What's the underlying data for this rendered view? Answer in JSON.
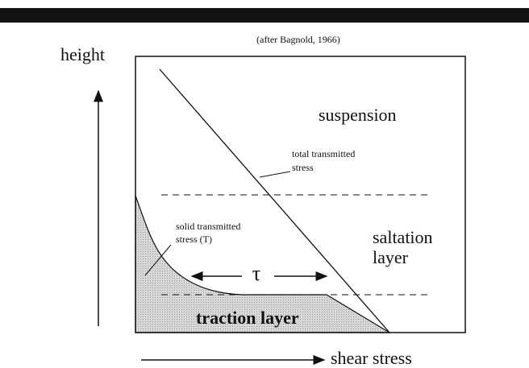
{
  "caption": "(after Bagnold, 1966)",
  "axes": {
    "y_label": "height",
    "x_label": "shear stress"
  },
  "regions": {
    "suspension": "suspension",
    "saltation": [
      "saltation",
      "layer"
    ],
    "traction": "traction layer"
  },
  "annotations": {
    "total": [
      "total transmitted",
      "stress"
    ],
    "solid": [
      "solid transmitted",
      "stress (T)"
    ],
    "tau": "τ"
  }
}
